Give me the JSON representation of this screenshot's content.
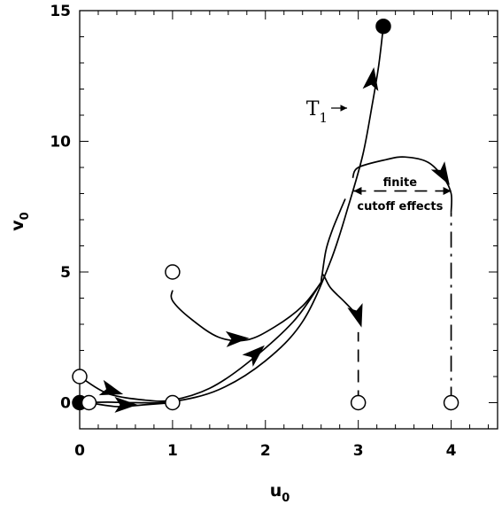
{
  "chart_data": {
    "type": "line",
    "title": "",
    "xlabel": "u",
    "xlabel_sub": "0",
    "ylabel": "v",
    "ylabel_sub": "0",
    "xlim": [
      0,
      4.5
    ],
    "ylim": [
      -1,
      15
    ],
    "x_ticks": [
      0,
      1,
      2,
      3,
      4
    ],
    "y_ticks": [
      0,
      5,
      10,
      15
    ],
    "grid": false,
    "legend": "none",
    "series": [
      {
        "style": "solid",
        "points": [
          [
            0,
            0
          ],
          [
            0.3,
            0.02
          ],
          [
            0.6,
            0.0
          ],
          [
            1,
            0.04
          ],
          [
            1.5,
            0.5
          ],
          [
            2,
            1.6
          ],
          [
            2.4,
            3.1
          ],
          [
            2.7,
            5.4
          ],
          [
            2.9,
            7.6
          ],
          [
            3.05,
            9.5
          ],
          [
            3.15,
            11.4
          ],
          [
            3.22,
            12.9
          ],
          [
            3.27,
            14.4
          ]
        ]
      },
      {
        "style": "solid",
        "points": [
          [
            0,
            1
          ],
          [
            0.3,
            0.35
          ],
          [
            0.7,
            0.1
          ],
          [
            1,
            0.1
          ],
          [
            1.4,
            0.55
          ],
          [
            1.8,
            1.5
          ],
          [
            2.3,
            3.1
          ],
          [
            2.6,
            4.6
          ]
        ]
      },
      {
        "style": "solid",
        "points": [
          [
            0.1,
            0
          ],
          [
            0.4,
            -0.15
          ],
          [
            0.7,
            -0.08
          ],
          [
            1,
            0
          ]
        ]
      },
      {
        "style": "solid",
        "points": [
          [
            1,
            4.3
          ],
          [
            1,
            3.9
          ],
          [
            1.2,
            3.2
          ],
          [
            1.5,
            2.5
          ],
          [
            1.8,
            2.4
          ],
          [
            2.1,
            2.9
          ],
          [
            2.4,
            3.7
          ],
          [
            2.6,
            4.6
          ]
        ]
      },
      {
        "style": "solid",
        "points": [
          [
            2.6,
            4.6
          ],
          [
            2.65,
            5.8
          ],
          [
            2.72,
            6.6
          ],
          [
            2.8,
            7.3
          ],
          [
            2.86,
            7.8
          ]
        ]
      },
      {
        "style": "solid",
        "points": [
          [
            2.6,
            4.6
          ],
          [
            2.62,
            4.9
          ],
          [
            2.7,
            4.4
          ],
          [
            2.84,
            3.9
          ],
          [
            2.95,
            3.5
          ]
        ]
      },
      {
        "style": "solid",
        "points": [
          [
            2.94,
            8.6
          ],
          [
            3.0,
            9.0
          ],
          [
            3.3,
            9.3
          ],
          [
            3.5,
            9.4
          ],
          [
            3.75,
            9.2
          ],
          [
            3.92,
            8.6
          ],
          [
            4.0,
            8.0
          ],
          [
            4.0,
            7.3
          ]
        ]
      },
      {
        "style": "dashed",
        "points": [
          [
            3,
            0
          ],
          [
            3,
            2.7
          ]
        ]
      },
      {
        "style": "dashdot",
        "points": [
          [
            4,
            0
          ],
          [
            4,
            7.3
          ]
        ]
      },
      {
        "style": "dashed",
        "points": [
          [
            2.95,
            8.1
          ],
          [
            4.0,
            8.1
          ]
        ]
      }
    ],
    "arrows": [
      {
        "at": [
          0.35,
          0.45
        ],
        "dir": [
          1,
          -0.3
        ]
      },
      {
        "at": [
          0.5,
          -0.08
        ],
        "dir": [
          1,
          0
        ]
      },
      {
        "at": [
          1.7,
          2.45
        ],
        "dir": [
          1,
          0.05
        ]
      },
      {
        "at": [
          1.9,
          1.9
        ],
        "dir": [
          1,
          0.9
        ]
      },
      {
        "at": [
          3.15,
          12.4
        ],
        "dir": [
          0.15,
          1
        ]
      },
      {
        "at": [
          3.0,
          3.3
        ],
        "dir": [
          0.3,
          -1
        ]
      },
      {
        "at": [
          3.92,
          8.7
        ],
        "dir": [
          0.6,
          -1
        ]
      }
    ],
    "markers": [
      {
        "x": 0,
        "y": 0,
        "filled": true
      },
      {
        "x": 0,
        "y": 1,
        "filled": false
      },
      {
        "x": 0.1,
        "y": 0,
        "filled": false
      },
      {
        "x": 1,
        "y": 0,
        "filled": false
      },
      {
        "x": 1,
        "y": 5,
        "filled": false
      },
      {
        "x": 3,
        "y": 0,
        "filled": false
      },
      {
        "x": 4,
        "y": 0,
        "filled": false
      },
      {
        "x": 3.27,
        "y": 14.4,
        "filled": true
      }
    ],
    "annotations": [
      {
        "label": "T",
        "sub": "1",
        "x": 2.67,
        "y": 11.0
      },
      {
        "label": "finite",
        "x": 3.45,
        "y": 8.45
      },
      {
        "label": "cutoff effects",
        "x": 3.45,
        "y": 7.55
      }
    ]
  }
}
